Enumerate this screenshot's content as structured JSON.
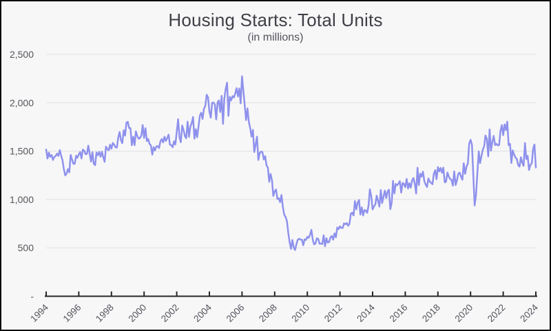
{
  "page": {
    "background": "#f7f7f8",
    "frame_color": "#0a0a0a"
  },
  "chart_data": {
    "type": "line",
    "title": "Housing Starts: Total Units",
    "subtitle": "(in millions)",
    "xlabel": "",
    "ylabel": "",
    "ylim": [
      0,
      2500
    ],
    "grid": true,
    "legend": false,
    "frequency": "monthly",
    "x_start": "1994-01",
    "x_end": "2024-01",
    "x_tick_years": [
      "1994",
      "1996",
      "1998",
      "2000",
      "2002",
      "2004",
      "2006",
      "2008",
      "2010",
      "2012",
      "2014",
      "2016",
      "2018",
      "2020",
      "2022",
      "2024"
    ],
    "y_ticks": [
      {
        "value": 0,
        "label": "-"
      },
      {
        "value": 500,
        "label": "500"
      },
      {
        "value": 1000,
        "label": "1,000"
      },
      {
        "value": 1500,
        "label": "1,500"
      },
      {
        "value": 2000,
        "label": "2,000"
      },
      {
        "value": 2500,
        "label": "2,500"
      }
    ],
    "colors": {
      "line": "#8f92ec",
      "grid": "#e4e4e7",
      "axis": "#27272a",
      "title_text": "#3f3f46",
      "subtitle_text": "#52525b",
      "tick_text": "#55555b"
    },
    "series": [
      {
        "name": "Housing Starts: Total Units",
        "values_by_year": {
          "1994": [
            1517,
            1423,
            1485,
            1440,
            1460,
            1409,
            1439,
            1450,
            1474,
            1450,
            1511,
            1455
          ],
          "1995": [
            1407,
            1316,
            1249,
            1267,
            1314,
            1281,
            1461,
            1416,
            1369,
            1369,
            1452,
            1431
          ],
          "1996": [
            1467,
            1491,
            1424,
            1516,
            1504,
            1467,
            1472,
            1557,
            1475,
            1392,
            1489,
            1370
          ],
          "1997": [
            1355,
            1486,
            1457,
            1492,
            1442,
            1494,
            1437,
            1390,
            1546,
            1520,
            1510,
            1566
          ],
          "1998": [
            1525,
            1584,
            1567,
            1540,
            1536,
            1641,
            1698,
            1614,
            1582,
            1715,
            1660,
            1792
          ],
          "1999": [
            1804,
            1738,
            1737,
            1561,
            1649,
            1562,
            1704,
            1657,
            1628,
            1636,
            1663,
            1769
          ],
          "2000": [
            1636,
            1737,
            1604,
            1626,
            1575,
            1559,
            1463,
            1541,
            1507,
            1549,
            1551,
            1532
          ],
          "2001": [
            1600,
            1625,
            1590,
            1649,
            1605,
            1636,
            1670,
            1567,
            1562,
            1540,
            1602,
            1568
          ],
          "2002": [
            1698,
            1829,
            1642,
            1592,
            1764,
            1717,
            1655,
            1633,
            1804,
            1648,
            1753,
            1788
          ],
          "2003": [
            1853,
            1629,
            1726,
            1643,
            1751,
            1867,
            1897,
            1833,
            1939,
            1967,
            2083,
            2057
          ],
          "2004": [
            1911,
            1846,
            1998,
            2003,
            1981,
            1828,
            2002,
            2024,
            1905,
            2072,
            1782,
            2042
          ],
          "2005": [
            2144,
            2207,
            1864,
            2061,
            2025,
            2068,
            2054,
            2095,
            2151,
            2065,
            2147,
            1994
          ],
          "2006": [
            2273,
            2119,
            1969,
            1821,
            1942,
            1802,
            1737,
            1650,
            1720,
            1491,
            1570,
            1649
          ],
          "2007": [
            1409,
            1480,
            1495,
            1490,
            1415,
            1448,
            1354,
            1330,
            1183,
            1264,
            1197,
            1037
          ],
          "2008": [
            1084,
            1103,
            1005,
            1013,
            973,
            1046,
            923,
            844,
            820,
            777,
            652,
            560
          ],
          "2009": [
            490,
            582,
            505,
            478,
            540,
            585,
            594,
            586,
            585,
            527,
            589,
            581
          ],
          "2010": [
            614,
            604,
            636,
            687,
            583,
            536,
            546,
            599,
            594,
            543,
            545,
            539
          ],
          "2011": [
            630,
            517,
            600,
            554,
            561,
            608,
            623,
            585,
            650,
            610,
            711,
            694
          ],
          "2012": [
            723,
            706,
            706,
            754,
            744,
            757,
            728,
            749,
            854,
            863,
            836,
            983
          ],
          "2013": [
            898,
            969,
            994,
            844,
            919,
            835,
            891,
            885,
            863,
            936,
            1105,
            1034
          ],
          "2014": [
            897,
            928,
            950,
            1039,
            984,
            927,
            1098,
            963,
            1028,
            1092,
            1015,
            1081
          ],
          "2015": [
            1101,
            900,
            965,
            1192,
            1063,
            1161,
            1147,
            1164,
            1189,
            1071,
            1171,
            1160
          ],
          "2016": [
            1128,
            1213,
            1113,
            1168,
            1122,
            1195,
            1222,
            1164,
            1062,
            1328,
            1149,
            1268
          ],
          "2017": [
            1236,
            1288,
            1189,
            1154,
            1129,
            1217,
            1185,
            1172,
            1158,
            1265,
            1303,
            1210
          ],
          "2018": [
            1334,
            1290,
            1327,
            1276,
            1329,
            1177,
            1184,
            1279,
            1237,
            1211,
            1202,
            1142
          ],
          "2019": [
            1291,
            1149,
            1199,
            1267,
            1278,
            1235,
            1204,
            1375,
            1266,
            1340,
            1371,
            1576
          ],
          "2020": [
            1617,
            1567,
            1269,
            938,
            1046,
            1273,
            1497,
            1376,
            1448,
            1514,
            1551,
            1661
          ],
          "2021": [
            1625,
            1447,
            1725,
            1505,
            1594,
            1657,
            1562,
            1576,
            1559,
            1563,
            1706,
            1768
          ],
          "2022": [
            1666,
            1777,
            1716,
            1805,
            1562,
            1575,
            1377,
            1508,
            1465,
            1434,
            1419,
            1357
          ],
          "2023": [
            1340,
            1436,
            1380,
            1348,
            1583,
            1418,
            1451,
            1305,
            1356,
            1376,
            1525,
            1568
          ],
          "2024": [
            1331
          ]
        }
      }
    ]
  }
}
